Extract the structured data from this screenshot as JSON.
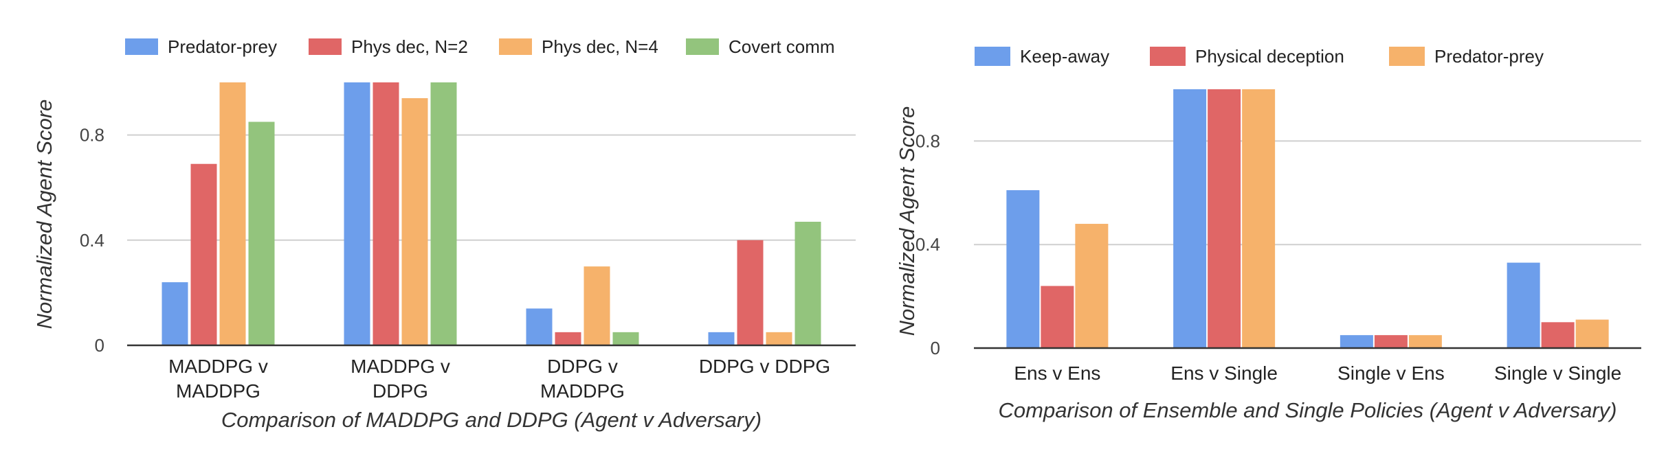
{
  "chart_data": [
    {
      "type": "bar",
      "title": "",
      "xlabel": "Comparison of MADDPG and DDPG (Agent v Adversary)",
      "ylabel": "Normalized Agent Score",
      "ylim": [
        0,
        1
      ],
      "yticks": [
        0,
        0.4,
        0.8
      ],
      "ytick_labels": [
        "0",
        "0.4",
        "0.8"
      ],
      "grid": true,
      "legend_position": "top",
      "categories": [
        [
          "MADDPG v",
          "MADDPG"
        ],
        [
          "MADDPG v",
          "DDPG"
        ],
        [
          "DDPG v",
          "MADDPG"
        ],
        [
          "DDPG v DDPG"
        ]
      ],
      "series": [
        {
          "name": "Predator-prey",
          "color": "#6d9eeb",
          "values": [
            0.24,
            1.0,
            0.14,
            0.05
          ]
        },
        {
          "name": "Phys dec, N=2",
          "color": "#e06666",
          "values": [
            0.69,
            1.0,
            0.05,
            0.4
          ]
        },
        {
          "name": "Phys dec, N=4",
          "color": "#f6b26b",
          "values": [
            1.0,
            0.94,
            0.3,
            0.05
          ]
        },
        {
          "name": "Covert comm",
          "color": "#93c47d",
          "values": [
            0.85,
            1.0,
            0.05,
            0.47
          ]
        }
      ]
    },
    {
      "type": "bar",
      "title": "",
      "xlabel": "Comparison of Ensemble and Single Policies (Agent v Adversary)",
      "ylabel": "Normalized Agent Score",
      "ylim": [
        0,
        1
      ],
      "yticks": [
        0,
        0.4,
        0.8
      ],
      "ytick_labels": [
        "0",
        "0.4",
        "0.8"
      ],
      "grid": true,
      "legend_position": "top",
      "categories": [
        [
          "Ens v Ens"
        ],
        [
          "Ens v Single"
        ],
        [
          "Single v Ens"
        ],
        [
          "Single v Single"
        ]
      ],
      "series": [
        {
          "name": "Keep-away",
          "color": "#6d9eeb",
          "values": [
            0.61,
            1.0,
            0.05,
            0.33
          ]
        },
        {
          "name": "Physical deception",
          "color": "#e06666",
          "values": [
            0.24,
            1.0,
            0.05,
            0.1
          ]
        },
        {
          "name": "Predator-prey",
          "color": "#f6b26b",
          "values": [
            0.48,
            1.0,
            0.05,
            0.11
          ]
        }
      ]
    }
  ]
}
